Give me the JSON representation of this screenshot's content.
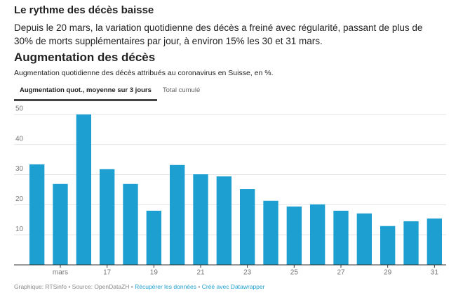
{
  "page": {
    "heading": "Le rythme des décès baisse",
    "intro": "Depuis le 20 mars, la variation quotidienne des décès a freiné avec régularité, passant de plus de 30% de morts supplémentaires par jour, à environ 15% les 30 et 31 mars.",
    "tabs": [
      "Augmentation quot., moyenne sur 3 jours",
      "Total cumulé"
    ],
    "footer": {
      "credit": "Graphique: RTSinfo • Source: OpenDataZH • ",
      "link1": "Récupérer les données",
      "sep": " • ",
      "link2": "Créé avec Datawrapper"
    }
  },
  "chart_data": {
    "type": "bar",
    "title": "Augmentation des décès",
    "subtitle": "Augmentation quotidienne des décès attribués au coronavirus en Suisse, en %.",
    "categories": [
      null,
      "mars",
      null,
      "17",
      null,
      "19",
      null,
      "21",
      null,
      "23",
      null,
      "25",
      null,
      "27",
      null,
      "29",
      null,
      "31"
    ],
    "values": [
      33.4,
      26.9,
      50,
      31.8,
      26.9,
      18,
      33.2,
      30.1,
      29.4,
      25.2,
      21.3,
      19.4,
      20.1,
      18,
      17.1,
      12.9,
      14.5,
      15.4
    ],
    "color": "#1d9fd1",
    "ylim": [
      0,
      53
    ],
    "yticks": [
      10,
      20,
      30,
      40,
      50
    ],
    "grid": true
  }
}
